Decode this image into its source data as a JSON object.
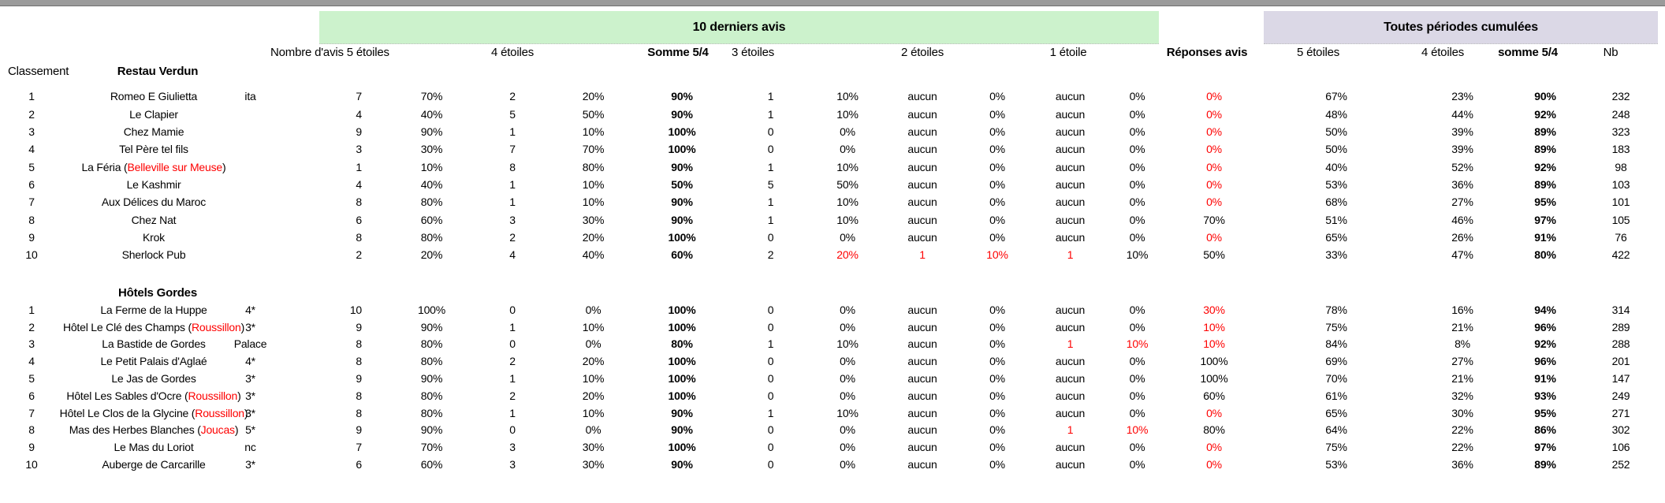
{
  "bands": {
    "recent": "10 derniers avis",
    "cumulative": "Toutes périodes cumulées"
  },
  "colors": {
    "recent_band_bg": "#ccf2cc",
    "cumulative_band_bg": "#dbd8e6",
    "alert_text": "#fe0000",
    "top_edge": "#9b9b9b"
  },
  "left_headers": {
    "classement": "Classement",
    "restau": "Restau Verdun",
    "hotels": "Hôtels Gordes"
  },
  "columns": {
    "nombre5": "Nombre d'avis 5 étoiles",
    "etoiles4": "4 étoiles",
    "somme54": "Somme 5/4",
    "etoiles3": "3 étoiles",
    "etoiles2": "2 étoiles",
    "etoile1": "1 étoile",
    "reponses": "Réponses avis",
    "cum5": "5 étoiles",
    "cum4": "4 étoiles",
    "cumsomme": "somme 5/4",
    "nb": "Nb"
  },
  "restaurants": [
    {
      "rank": "1",
      "name": "Romeo E Giulietta",
      "note": "",
      "tag": "ita",
      "c5": "7",
      "p5": "70%",
      "c4": "2",
      "p4": "20%",
      "s54": "90%",
      "c3": "1",
      "p3": "10%",
      "c2": "aucun",
      "p2": "0%",
      "c1": "aucun",
      "p1": "0%",
      "rep": "0%",
      "cum5": "67%",
      "cum4": "23%",
      "cums": "90%",
      "nb": "232",
      "red": [
        "rep"
      ]
    },
    {
      "rank": "2",
      "name": "Le Clapier",
      "note": "",
      "tag": "",
      "c5": "4",
      "p5": "40%",
      "c4": "5",
      "p4": "50%",
      "s54": "90%",
      "c3": "1",
      "p3": "10%",
      "c2": "aucun",
      "p2": "0%",
      "c1": "aucun",
      "p1": "0%",
      "rep": "0%",
      "cum5": "48%",
      "cum4": "44%",
      "cums": "92%",
      "nb": "248",
      "red": [
        "rep"
      ]
    },
    {
      "rank": "3",
      "name": "Chez Mamie",
      "note": "",
      "tag": "",
      "c5": "9",
      "p5": "90%",
      "c4": "1",
      "p4": "10%",
      "s54": "100%",
      "c3": "0",
      "p3": "0%",
      "c2": "aucun",
      "p2": "0%",
      "c1": "aucun",
      "p1": "0%",
      "rep": "0%",
      "cum5": "50%",
      "cum4": "39%",
      "cums": "89%",
      "nb": "323",
      "red": [
        "rep"
      ]
    },
    {
      "rank": "4",
      "name": "Tel Père tel fils",
      "note": "",
      "tag": "",
      "c5": "3",
      "p5": "30%",
      "c4": "7",
      "p4": "70%",
      "s54": "100%",
      "c3": "0",
      "p3": "0%",
      "c2": "aucun",
      "p2": "0%",
      "c1": "aucun",
      "p1": "0%",
      "rep": "0%",
      "cum5": "50%",
      "cum4": "39%",
      "cums": "89%",
      "nb": "183",
      "red": [
        "rep"
      ]
    },
    {
      "rank": "5",
      "name": "La Féria",
      "note": "Belleville sur Meuse",
      "tag": "",
      "c5": "1",
      "p5": "10%",
      "c4": "8",
      "p4": "80%",
      "s54": "90%",
      "c3": "1",
      "p3": "10%",
      "c2": "aucun",
      "p2": "0%",
      "c1": "aucun",
      "p1": "0%",
      "rep": "0%",
      "cum5": "40%",
      "cum4": "52%",
      "cums": "92%",
      "nb": "98",
      "red": [
        "rep"
      ]
    },
    {
      "rank": "6",
      "name": "Le Kashmir",
      "note": "",
      "tag": "",
      "c5": "4",
      "p5": "40%",
      "c4": "1",
      "p4": "10%",
      "s54": "50%",
      "c3": "5",
      "p3": "50%",
      "c2": "aucun",
      "p2": "0%",
      "c1": "aucun",
      "p1": "0%",
      "rep": "0%",
      "cum5": "53%",
      "cum4": "36%",
      "cums": "89%",
      "nb": "103",
      "red": [
        "rep"
      ]
    },
    {
      "rank": "7",
      "name": "Aux Délices du Maroc",
      "note": "",
      "tag": "",
      "c5": "8",
      "p5": "80%",
      "c4": "1",
      "p4": "10%",
      "s54": "90%",
      "c3": "1",
      "p3": "10%",
      "c2": "aucun",
      "p2": "0%",
      "c1": "aucun",
      "p1": "0%",
      "rep": "0%",
      "cum5": "68%",
      "cum4": "27%",
      "cums": "95%",
      "nb": "101",
      "red": [
        "rep"
      ]
    },
    {
      "rank": "8",
      "name": "Chez Nat",
      "note": "",
      "tag": "",
      "c5": "6",
      "p5": "60%",
      "c4": "3",
      "p4": "30%",
      "s54": "90%",
      "c3": "1",
      "p3": "10%",
      "c2": "aucun",
      "p2": "0%",
      "c1": "aucun",
      "p1": "0%",
      "rep": "70%",
      "cum5": "51%",
      "cum4": "46%",
      "cums": "97%",
      "nb": "105",
      "red": []
    },
    {
      "rank": "9",
      "name": "Krok",
      "note": "",
      "tag": "",
      "c5": "8",
      "p5": "80%",
      "c4": "2",
      "p4": "20%",
      "s54": "100%",
      "c3": "0",
      "p3": "0%",
      "c2": "aucun",
      "p2": "0%",
      "c1": "aucun",
      "p1": "0%",
      "rep": "0%",
      "cum5": "65%",
      "cum4": "26%",
      "cums": "91%",
      "nb": "76",
      "red": [
        "rep"
      ]
    },
    {
      "rank": "10",
      "name": "Sherlock Pub",
      "note": "",
      "tag": "",
      "c5": "2",
      "p5": "20%",
      "c4": "4",
      "p4": "40%",
      "s54": "60%",
      "c3": "2",
      "p3": "20%",
      "c2": "1",
      "p2": "10%",
      "c1": "1",
      "p1": "10%",
      "rep": "50%",
      "cum5": "33%",
      "cum4": "47%",
      "cums": "80%",
      "nb": "422",
      "red": [
        "p3",
        "c2",
        "p2",
        "c1"
      ]
    }
  ],
  "hotels": [
    {
      "rank": "1",
      "name": "La Ferme de la Huppe",
      "note": "",
      "tag": "4*",
      "c5": "10",
      "p5": "100%",
      "c4": "0",
      "p4": "0%",
      "s54": "100%",
      "c3": "0",
      "p3": "0%",
      "c2": "aucun",
      "p2": "0%",
      "c1": "aucun",
      "p1": "0%",
      "rep": "30%",
      "cum5": "78%",
      "cum4": "16%",
      "cums": "94%",
      "nb": "314",
      "red": [
        "rep"
      ]
    },
    {
      "rank": "2",
      "name": "Hôtel Le Clé des Champs",
      "note": "Roussillon",
      "tag": "3*",
      "c5": "9",
      "p5": "90%",
      "c4": "1",
      "p4": "10%",
      "s54": "100%",
      "c3": "0",
      "p3": "0%",
      "c2": "aucun",
      "p2": "0%",
      "c1": "aucun",
      "p1": "0%",
      "rep": "10%",
      "cum5": "75%",
      "cum4": "21%",
      "cums": "96%",
      "nb": "289",
      "red": [
        "rep"
      ]
    },
    {
      "rank": "3",
      "name": "La Bastide de Gordes",
      "note": "",
      "tag": "Palace",
      "c5": "8",
      "p5": "80%",
      "c4": "0",
      "p4": "0%",
      "s54": "80%",
      "c3": "1",
      "p3": "10%",
      "c2": "aucun",
      "p2": "0%",
      "c1": "1",
      "p1": "10%",
      "rep": "10%",
      "cum5": "84%",
      "cum4": "8%",
      "cums": "92%",
      "nb": "288",
      "red": [
        "c1",
        "p1",
        "rep"
      ]
    },
    {
      "rank": "4",
      "name": "Le Petit Palais d'Aglaé",
      "note": "",
      "tag": "4*",
      "c5": "8",
      "p5": "80%",
      "c4": "2",
      "p4": "20%",
      "s54": "100%",
      "c3": "0",
      "p3": "0%",
      "c2": "aucun",
      "p2": "0%",
      "c1": "aucun",
      "p1": "0%",
      "rep": "100%",
      "cum5": "69%",
      "cum4": "27%",
      "cums": "96%",
      "nb": "201",
      "red": []
    },
    {
      "rank": "5",
      "name": "Le Jas de Gordes",
      "note": "",
      "tag": "3*",
      "c5": "9",
      "p5": "90%",
      "c4": "1",
      "p4": "10%",
      "s54": "100%",
      "c3": "0",
      "p3": "0%",
      "c2": "aucun",
      "p2": "0%",
      "c1": "aucun",
      "p1": "0%",
      "rep": "100%",
      "cum5": "70%",
      "cum4": "21%",
      "cums": "91%",
      "nb": "147",
      "red": []
    },
    {
      "rank": "6",
      "name": "Hôtel Les Sables d'Ocre",
      "note": "Roussillon",
      "tag": "3*",
      "c5": "8",
      "p5": "80%",
      "c4": "2",
      "p4": "20%",
      "s54": "100%",
      "c3": "0",
      "p3": "0%",
      "c2": "aucun",
      "p2": "0%",
      "c1": "aucun",
      "p1": "0%",
      "rep": "60%",
      "cum5": "61%",
      "cum4": "32%",
      "cums": "93%",
      "nb": "249",
      "red": []
    },
    {
      "rank": "7",
      "name": "Hôtel Le Clos de la Glycine",
      "note": "Roussillon",
      "tag": "3*",
      "c5": "8",
      "p5": "80%",
      "c4": "1",
      "p4": "10%",
      "s54": "90%",
      "c3": "1",
      "p3": "10%",
      "c2": "aucun",
      "p2": "0%",
      "c1": "aucun",
      "p1": "0%",
      "rep": "0%",
      "cum5": "65%",
      "cum4": "30%",
      "cums": "95%",
      "nb": "271",
      "red": [
        "rep"
      ]
    },
    {
      "rank": "8",
      "name": "Mas des Herbes Blanches",
      "note": "Joucas",
      "tag": "5*",
      "c5": "9",
      "p5": "90%",
      "c4": "0",
      "p4": "0%",
      "s54": "90%",
      "c3": "0",
      "p3": "0%",
      "c2": "aucun",
      "p2": "0%",
      "c1": "1",
      "p1": "10%",
      "rep": "80%",
      "cum5": "64%",
      "cum4": "22%",
      "cums": "86%",
      "nb": "302",
      "red": [
        "c1",
        "p1"
      ]
    },
    {
      "rank": "9",
      "name": "Le Mas du Loriot",
      "note": "",
      "tag": "nc",
      "c5": "7",
      "p5": "70%",
      "c4": "3",
      "p4": "30%",
      "s54": "100%",
      "c3": "0",
      "p3": "0%",
      "c2": "aucun",
      "p2": "0%",
      "c1": "aucun",
      "p1": "0%",
      "rep": "0%",
      "cum5": "75%",
      "cum4": "22%",
      "cums": "97%",
      "nb": "106",
      "red": [
        "rep"
      ]
    },
    {
      "rank": "10",
      "name": "Auberge de Carcarille",
      "note": "",
      "tag": "3*",
      "c5": "6",
      "p5": "60%",
      "c4": "3",
      "p4": "30%",
      "s54": "90%",
      "c3": "0",
      "p3": "0%",
      "c2": "aucun",
      "p2": "0%",
      "c1": "aucun",
      "p1": "0%",
      "rep": "0%",
      "cum5": "53%",
      "cum4": "36%",
      "cums": "89%",
      "nb": "252",
      "red": [
        "rep"
      ]
    }
  ]
}
